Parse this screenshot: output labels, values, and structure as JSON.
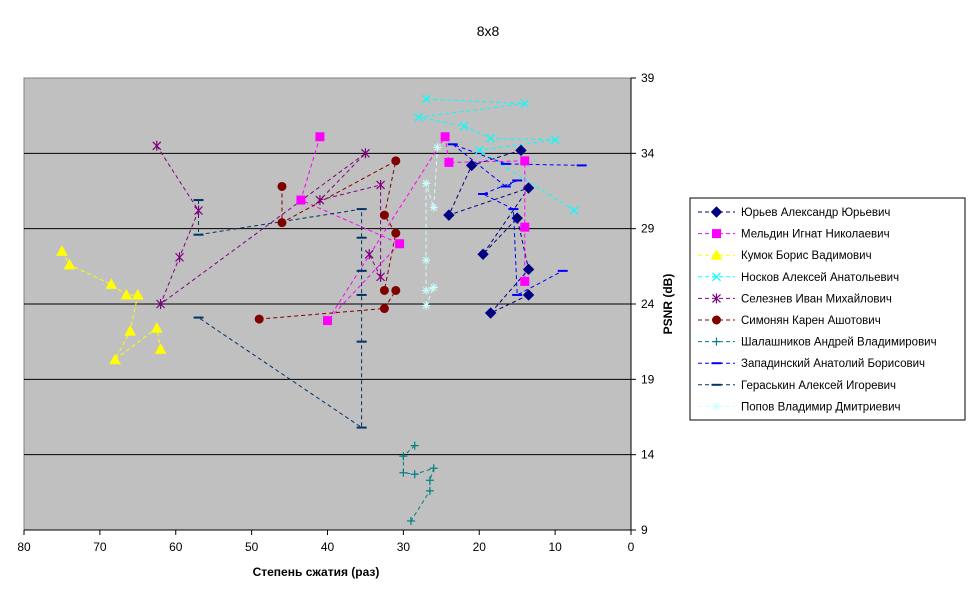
{
  "chart_data": {
    "type": "scatter",
    "title": "8x8",
    "xlabel": "Степень сжатия (раз)",
    "ylabel": "PSNR (dB)",
    "xlim": [
      80,
      0
    ],
    "ylim": [
      9,
      39
    ],
    "xticks": [
      "80",
      "70",
      "60",
      "50",
      "40",
      "30",
      "20",
      "10",
      "0"
    ],
    "yticks": [
      "9",
      "14",
      "19",
      "24",
      "29",
      "34",
      "39"
    ],
    "grid": "horizontal",
    "plot_background": "#c0c0c0",
    "legend_position": "right",
    "series": [
      {
        "name": "Юрьев Александр Юрьевич",
        "color": "#000080",
        "marker": "diamond",
        "points": [
          [
            14.5,
            34.2
          ],
          [
            21,
            33.2
          ],
          [
            24,
            29.9
          ],
          [
            13.5,
            31.7
          ],
          [
            19.5,
            27.3
          ],
          [
            15,
            29.7
          ],
          [
            13.5,
            26.3
          ],
          [
            18.5,
            23.4
          ],
          [
            13.5,
            24.6
          ]
        ]
      },
      {
        "name": "Мельдин Игнат Николаевич",
        "color": "#ff00ff",
        "marker": "square",
        "points": [
          [
            41,
            35.1
          ],
          [
            43.5,
            30.9
          ],
          [
            30.5,
            28.0
          ],
          [
            40,
            22.9
          ],
          [
            24.5,
            35.1
          ],
          [
            24,
            33.4
          ],
          [
            14,
            33.5
          ],
          [
            14,
            29.1
          ],
          [
            14,
            25.5
          ]
        ]
      },
      {
        "name": "Кумок Борис Вадимович",
        "color": "#ffff00",
        "marker": "triangle",
        "points": [
          [
            75,
            27.5
          ],
          [
            74,
            26.6
          ],
          [
            68.5,
            25.3
          ],
          [
            66.5,
            24.6
          ],
          [
            65,
            24.6
          ],
          [
            66,
            22.2
          ],
          [
            68,
            20.3
          ],
          [
            62.5,
            22.4
          ],
          [
            62,
            21.0
          ]
        ]
      },
      {
        "name": "Носков Алексей Анатольевич",
        "color": "#00ffff",
        "marker": "x",
        "points": [
          [
            27,
            37.6
          ],
          [
            14,
            37.3
          ],
          [
            28,
            36.4
          ],
          [
            22,
            35.8
          ],
          [
            18.5,
            35.0
          ],
          [
            10,
            34.9
          ],
          [
            20,
            34.2
          ],
          [
            7.5,
            30.2
          ]
        ]
      },
      {
        "name": "Селезнев Иван Михайлович",
        "color": "#800080",
        "marker": "asterisk",
        "points": [
          [
            62.5,
            34.5
          ],
          [
            57,
            30.2
          ],
          [
            59.5,
            27.1
          ],
          [
            62,
            24.0
          ],
          [
            35,
            34.0
          ],
          [
            41,
            30.9
          ],
          [
            33,
            31.9
          ],
          [
            33,
            25.8
          ],
          [
            34.5,
            27.3
          ]
        ]
      },
      {
        "name": "Симонян Карен Ашотович",
        "color": "#800000",
        "marker": "circle",
        "points": [
          [
            46,
            31.8
          ],
          [
            46,
            29.4
          ],
          [
            31,
            33.5
          ],
          [
            32.5,
            29.9
          ],
          [
            31,
            28.7
          ],
          [
            32.5,
            24.9
          ],
          [
            31,
            24.9
          ],
          [
            32.5,
            23.7
          ],
          [
            49,
            23.0
          ]
        ]
      },
      {
        "name": "Шалашников Андрей Владимирович",
        "color": "#008080",
        "marker": "plus",
        "points": [
          [
            28.5,
            14.6
          ],
          [
            30,
            13.9
          ],
          [
            30,
            12.8
          ],
          [
            28.5,
            12.7
          ],
          [
            26,
            13.1
          ],
          [
            26.5,
            12.3
          ],
          [
            26.5,
            11.6
          ],
          [
            29,
            9.6
          ]
        ]
      },
      {
        "name": "Западинский Анатолий Борисович",
        "color": "#0000ff",
        "marker": "dash",
        "points": [
          [
            6.5,
            33.2
          ],
          [
            16.5,
            33.3
          ],
          [
            23.5,
            34.6
          ],
          [
            16.5,
            31.8
          ],
          [
            15,
            32.2
          ],
          [
            19.5,
            31.3
          ],
          [
            15.5,
            30.3
          ],
          [
            15,
            24.6
          ],
          [
            9,
            26.2
          ]
        ]
      },
      {
        "name": "Гераськин Алексей Игоревич",
        "color": "#003366",
        "marker": "dash",
        "points": [
          [
            57,
            30.9
          ],
          [
            57,
            28.6
          ],
          [
            35.5,
            30.3
          ],
          [
            35.5,
            28.4
          ],
          [
            35.5,
            26.2
          ],
          [
            35.5,
            24.6
          ],
          [
            35.5,
            21.5
          ],
          [
            35.5,
            15.8
          ],
          [
            57,
            23.1
          ]
        ]
      },
      {
        "name": "Попов Владимир Дмитриевич",
        "color": "#ccffff",
        "marker": "star",
        "points": [
          [
            25.5,
            34.4
          ],
          [
            26,
            30.4
          ],
          [
            27,
            32.0
          ],
          [
            27,
            26.9
          ],
          [
            27,
            24.9
          ],
          [
            26,
            25.1
          ],
          [
            27,
            23.9
          ]
        ]
      }
    ]
  }
}
